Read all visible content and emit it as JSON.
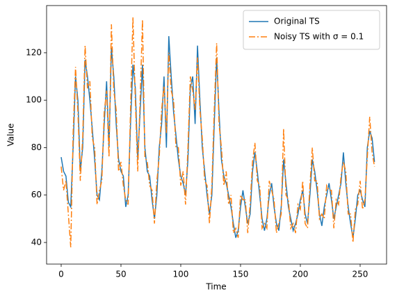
{
  "chart_data": {
    "type": "line",
    "xlabel": "Time",
    "ylabel": "Value",
    "legend": "upper right",
    "xlim": [
      -12.2,
      272.1
    ],
    "ylim": [
      30.9,
      139.9
    ],
    "xticks": [
      0,
      50,
      100,
      150,
      200,
      250
    ],
    "yticks": [
      40,
      60,
      80,
      100,
      120
    ],
    "x": [
      0,
      2,
      4,
      6,
      8,
      10,
      12,
      14,
      16,
      18,
      20,
      22,
      24,
      26,
      28,
      30,
      32,
      34,
      36,
      38,
      40,
      42,
      44,
      46,
      48,
      50,
      52,
      54,
      56,
      58,
      60,
      62,
      64,
      66,
      68,
      70,
      72,
      74,
      76,
      78,
      80,
      82,
      84,
      86,
      88,
      90,
      92,
      94,
      96,
      98,
      100,
      102,
      104,
      106,
      108,
      110,
      112,
      114,
      116,
      118,
      120,
      122,
      124,
      126,
      128,
      130,
      132,
      134,
      136,
      138,
      140,
      142,
      144,
      146,
      148,
      150,
      152,
      154,
      156,
      158,
      160,
      162,
      164,
      166,
      168,
      170,
      172,
      174,
      176,
      178,
      180,
      182,
      184,
      186,
      188,
      190,
      192,
      194,
      196,
      198,
      200,
      202,
      204,
      206,
      208,
      210,
      212,
      214,
      216,
      218,
      220,
      222,
      224,
      226,
      228,
      230,
      232,
      234,
      236,
      238,
      240,
      242,
      244,
      246,
      248,
      250,
      252,
      254,
      256,
      258,
      260,
      262
    ],
    "series": [
      {
        "name": "Original TS",
        "color": "#1f77b4",
        "linestyle": "solid",
        "values": [
          76,
          70,
          68,
          57,
          55,
          80,
          110,
          100,
          70,
          80,
          117,
          110,
          100,
          88,
          75,
          60,
          58,
          70,
          90,
          108,
          80,
          122,
          110,
          90,
          75,
          70,
          68,
          55,
          60,
          90,
          115,
          105,
          75,
          95,
          115,
          80,
          70,
          68,
          58,
          50,
          60,
          80,
          90,
          110,
          80,
          127,
          110,
          95,
          85,
          75,
          68,
          65,
          60,
          75,
          105,
          110,
          90,
          123,
          100,
          80,
          70,
          60,
          52,
          60,
          90,
          118,
          95,
          75,
          68,
          65,
          60,
          55,
          48,
          42,
          45,
          55,
          62,
          55,
          48,
          52,
          70,
          78,
          70,
          60,
          50,
          45,
          50,
          60,
          65,
          55,
          48,
          45,
          55,
          75,
          65,
          55,
          50,
          45,
          48,
          52,
          58,
          62,
          52,
          48,
          60,
          75,
          70,
          62,
          52,
          47,
          55,
          60,
          65,
          58,
          50,
          55,
          60,
          65,
          78,
          65,
          55,
          48,
          42,
          50,
          60,
          62,
          58,
          55,
          80,
          87,
          84,
          74
        ]
      },
      {
        "name": "Noisy TS with σ = 0.1",
        "color": "#ff7f0e",
        "linestyle": "dashdot",
        "values": [
          72,
          62,
          66,
          52,
          38,
          86,
          114,
          95,
          66,
          84,
          123,
          105,
          108,
          84,
          80,
          56,
          62,
          66,
          95,
          104,
          76,
          132,
          104,
          96,
          70,
          74,
          64,
          58,
          56,
          96,
          135,
          100,
          70,
          100,
          134,
          76,
          74,
          64,
          62,
          48,
          66,
          76,
          96,
          106,
          86,
          120,
          104,
          100,
          80,
          80,
          64,
          70,
          56,
          80,
          110,
          104,
          96,
          118,
          96,
          84,
          66,
          64,
          48,
          64,
          96,
          124,
          90,
          80,
          64,
          70,
          56,
          60,
          44,
          46,
          42,
          60,
          58,
          58,
          44,
          56,
          74,
          82,
          66,
          64,
          46,
          48,
          46,
          66,
          62,
          58,
          44,
          48,
          52,
          88,
          60,
          58,
          46,
          48,
          44,
          56,
          54,
          66,
          48,
          46,
          64,
          80,
          66,
          66,
          50,
          52,
          50,
          64,
          62,
          62,
          46,
          58,
          56,
          68,
          74,
          70,
          52,
          52,
          40,
          54,
          56,
          66,
          54,
          58,
          76,
          93,
          78,
          72
        ]
      }
    ]
  }
}
